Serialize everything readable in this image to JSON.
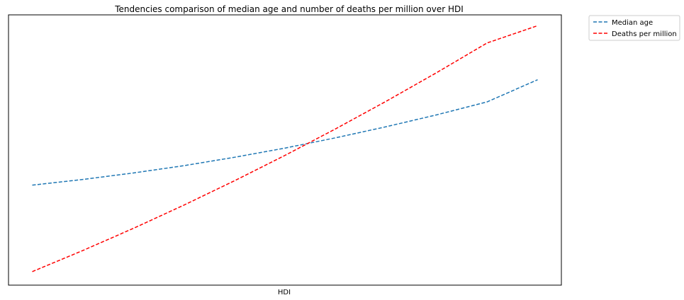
{
  "chart_data": {
    "type": "line",
    "title": "Tendencies comparison of median age and number of deaths per million over HDI",
    "xlabel": "HDI",
    "ylabel": "",
    "x_ticks_shown": false,
    "y_ticks_shown": false,
    "grid": false,
    "legend_placement": "outside-top-right",
    "x": [
      0,
      0.1,
      0.2,
      0.3,
      0.4,
      0.5,
      0.6,
      0.7,
      0.8,
      0.9,
      1.0
    ],
    "series": [
      {
        "name": "Median age",
        "color": "#1f77b4",
        "line_style": "dashed",
        "values": [
          0.37,
          0.391,
          0.415,
          0.442,
          0.473,
          0.507,
          0.545,
          0.586,
          0.63,
          0.678,
          0.76
        ]
      },
      {
        "name": "Deaths per million",
        "color": "#ff0000",
        "line_style": "dashed",
        "values": [
          0.05,
          0.128,
          0.21,
          0.296,
          0.386,
          0.48,
          0.578,
          0.68,
          0.786,
          0.896,
          0.96
        ]
      }
    ],
    "ylim": [
      0,
      1
    ],
    "xlim": [
      -0.047,
      1.047
    ]
  }
}
